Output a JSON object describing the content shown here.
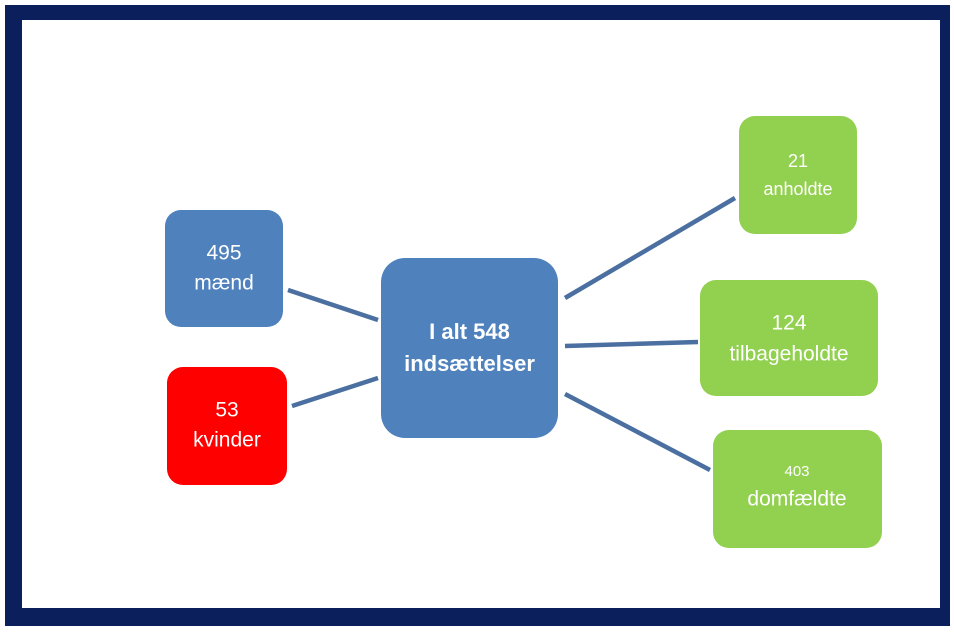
{
  "nodes": [
    {
      "line1": "I alt 548",
      "line2": "indsættelser"
    },
    {
      "line1": "495",
      "line2": "mænd"
    },
    {
      "line1": "53",
      "line2": "kvinder"
    },
    {
      "line1": "21",
      "line2": "anholdte"
    },
    {
      "line1": "124",
      "line2": "tilbageholdte"
    },
    {
      "line1": "403",
      "line2": "domfældte"
    }
  ]
}
